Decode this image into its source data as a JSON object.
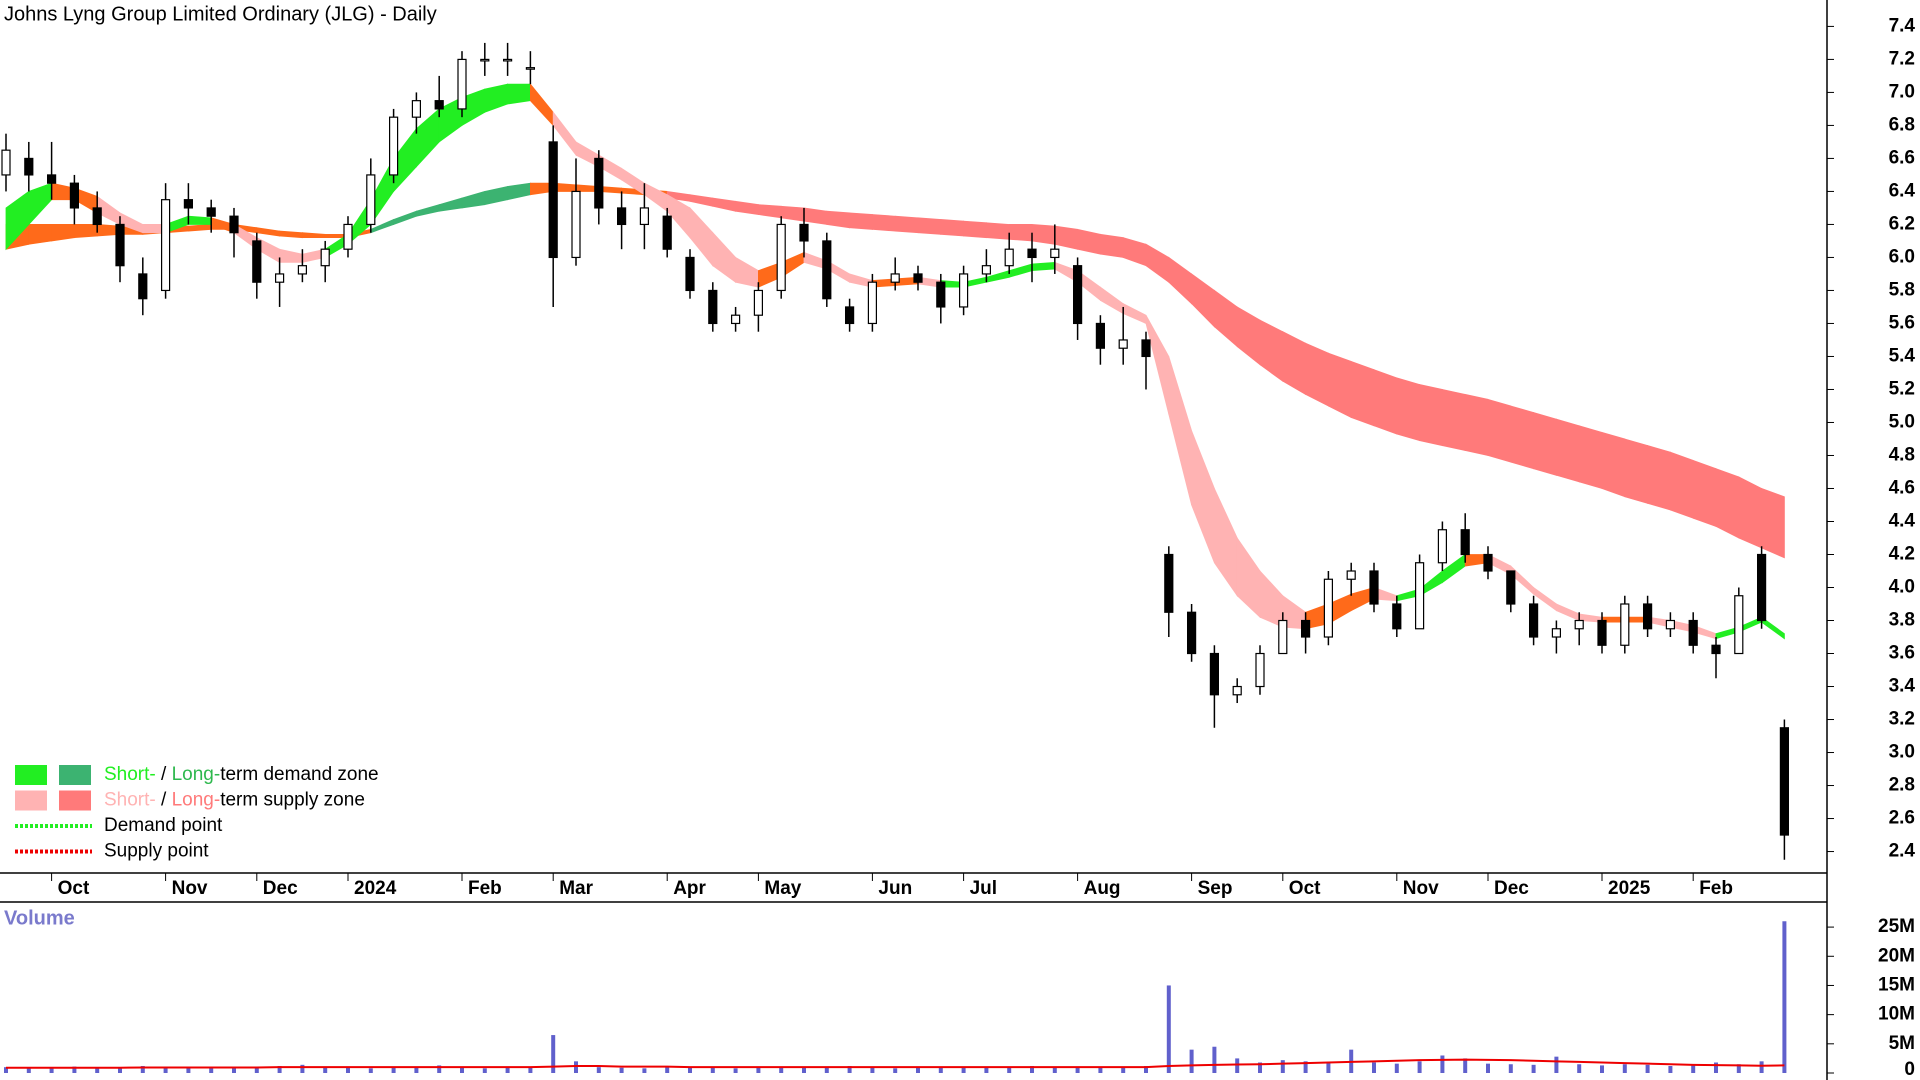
{
  "chart_data": {
    "type": "candlestick",
    "title": "Johns Lyng Group Limited Ordinary (JLG) - Daily",
    "categories": [
      null,
      null,
      "Oct",
      null,
      null,
      null,
      null,
      "Nov",
      null,
      null,
      null,
      "Dec",
      null,
      null,
      null,
      "2024",
      null,
      null,
      null,
      null,
      "Feb",
      null,
      null,
      null,
      "Mar",
      null,
      null,
      null,
      null,
      "Apr",
      null,
      null,
      null,
      "May",
      null,
      null,
      null,
      null,
      "Jun",
      null,
      null,
      null,
      "Jul",
      null,
      null,
      null,
      null,
      "Aug",
      null,
      null,
      null,
      null,
      "Sep",
      null,
      null,
      null,
      "Oct",
      null,
      null,
      null,
      null,
      "Nov",
      null,
      null,
      null,
      "Dec",
      null,
      null,
      null,
      null,
      "2025",
      null,
      null,
      null,
      "Feb",
      null,
      null,
      null,
      null
    ],
    "open": [
      6.5,
      6.6,
      6.5,
      6.45,
      6.3,
      6.2,
      5.9,
      5.8,
      6.35,
      6.3,
      6.25,
      6.1,
      5.85,
      5.9,
      5.95,
      6.05,
      6.2,
      6.5,
      6.85,
      6.95,
      6.9,
      7.2,
      7.2,
      7.15,
      6.7,
      6.0,
      6.6,
      6.3,
      6.2,
      6.25,
      6.0,
      5.8,
      5.6,
      5.65,
      5.8,
      6.2,
      6.1,
      5.7,
      5.6,
      5.85,
      5.9,
      5.85,
      5.7,
      5.9,
      5.95,
      6.05,
      6.0,
      5.95,
      5.6,
      5.45,
      5.5,
      4.2,
      3.85,
      3.6,
      3.35,
      3.4,
      3.6,
      3.8,
      3.7,
      4.05,
      4.1,
      3.9,
      3.75,
      4.15,
      4.35,
      4.2,
      4.1,
      3.9,
      3.7,
      3.75,
      3.8,
      3.65,
      3.9,
      3.75,
      3.8,
      3.65,
      3.6,
      4.2,
      3.15
    ],
    "high": [
      6.75,
      6.7,
      6.7,
      6.5,
      6.4,
      6.25,
      6.0,
      6.45,
      6.45,
      6.35,
      6.3,
      6.15,
      6.0,
      6.05,
      6.1,
      6.25,
      6.6,
      6.9,
      7.0,
      7.1,
      7.25,
      7.3,
      7.3,
      7.25,
      6.8,
      6.6,
      6.65,
      6.4,
      6.45,
      6.3,
      6.05,
      5.85,
      5.7,
      5.85,
      6.25,
      6.3,
      6.15,
      5.75,
      5.9,
      6.0,
      5.95,
      5.9,
      5.95,
      6.05,
      6.15,
      6.15,
      6.2,
      6.0,
      5.65,
      5.7,
      5.55,
      4.25,
      3.9,
      3.65,
      3.45,
      3.65,
      3.85,
      3.85,
      4.1,
      4.15,
      4.15,
      3.95,
      4.2,
      4.4,
      4.45,
      4.25,
      4.1,
      3.95,
      3.8,
      3.85,
      3.85,
      3.95,
      3.95,
      3.85,
      3.85,
      3.7,
      4.0,
      4.25,
      3.2
    ],
    "low": [
      6.4,
      6.4,
      6.35,
      6.2,
      6.15,
      5.85,
      5.65,
      5.75,
      6.2,
      6.15,
      6.0,
      5.75,
      5.7,
      5.85,
      5.85,
      6.0,
      6.15,
      6.45,
      6.75,
      6.85,
      6.85,
      7.1,
      7.1,
      7.05,
      5.7,
      5.95,
      6.2,
      6.05,
      6.05,
      6.0,
      5.75,
      5.55,
      5.55,
      5.55,
      5.75,
      6.0,
      5.7,
      5.55,
      5.55,
      5.8,
      5.8,
      5.6,
      5.65,
      5.85,
      5.9,
      5.85,
      5.9,
      5.5,
      5.35,
      5.35,
      5.2,
      3.7,
      3.55,
      3.15,
      3.3,
      3.35,
      3.6,
      3.6,
      3.65,
      3.95,
      3.85,
      3.7,
      3.75,
      4.1,
      4.15,
      4.05,
      3.85,
      3.65,
      3.6,
      3.65,
      3.6,
      3.6,
      3.7,
      3.7,
      3.6,
      3.45,
      3.6,
      3.75,
      2.35
    ],
    "close": [
      6.65,
      6.5,
      6.45,
      6.3,
      6.2,
      5.95,
      5.75,
      6.35,
      6.3,
      6.25,
      6.15,
      5.85,
      5.9,
      5.95,
      6.05,
      6.2,
      6.5,
      6.85,
      6.95,
      6.9,
      7.2,
      7.2,
      7.2,
      7.15,
      6.0,
      6.4,
      6.3,
      6.2,
      6.3,
      6.05,
      5.8,
      5.6,
      5.65,
      5.8,
      6.2,
      6.1,
      5.75,
      5.6,
      5.85,
      5.9,
      5.85,
      5.7,
      5.9,
      5.95,
      6.05,
      6.0,
      6.05,
      5.6,
      5.45,
      5.5,
      5.4,
      3.85,
      3.6,
      3.35,
      3.4,
      3.6,
      3.8,
      3.7,
      4.05,
      4.1,
      3.9,
      3.75,
      4.15,
      4.35,
      4.2,
      4.1,
      3.9,
      3.7,
      3.75,
      3.8,
      3.65,
      3.9,
      3.75,
      3.8,
      3.65,
      3.6,
      3.95,
      3.8,
      2.5
    ],
    "ylim": [
      2.27,
      7.56
    ],
    "yticks": [
      2.4,
      2.6,
      2.8,
      {
        "value": 3,
        "label": "3.0"
      },
      3.2,
      3.4,
      3.6,
      3.8,
      {
        "value": 4,
        "label": "4.0"
      },
      4.2,
      4.4,
      4.6,
      4.8,
      {
        "value": 5,
        "label": "5.0"
      },
      5.2,
      5.4,
      5.6,
      5.8,
      {
        "value": 6,
        "label": "6.0"
      },
      6.2,
      6.4,
      6.6,
      6.8,
      {
        "value": 7,
        "label": "7.0"
      },
      7.2,
      7.4
    ],
    "bands": [
      {
        "lower": [
          6.05,
          6.08,
          6.1,
          6.12,
          6.13,
          6.14,
          6.14,
          6.15,
          6.16,
          6.17,
          6.17,
          6.15,
          6.13,
          6.12,
          6.12,
          6.12,
          6.15,
          6.2,
          6.25,
          6.28,
          6.3,
          6.32,
          6.35,
          6.38,
          6.4,
          6.4,
          6.4,
          6.39,
          6.38,
          6.36,
          6.34,
          6.31,
          6.28,
          6.26,
          6.24,
          6.22,
          6.2,
          6.18,
          6.17,
          6.16,
          6.15,
          6.14,
          6.13,
          6.12,
          6.11,
          6.1,
          6.08,
          6.05,
          6.02,
          6.0,
          5.95,
          5.85,
          5.72,
          5.58,
          5.46,
          5.35,
          5.25,
          5.17,
          5.1,
          5.03,
          4.98,
          4.93,
          4.89,
          4.86,
          4.83,
          4.8,
          4.76,
          4.72,
          4.68,
          4.64,
          4.6,
          4.55,
          4.51,
          4.47,
          4.42,
          4.37,
          4.3,
          4.24,
          4.18
        ],
        "upper": [
          6.2,
          6.2,
          6.2,
          6.2,
          6.2,
          6.19,
          6.18,
          6.18,
          6.19,
          6.2,
          6.2,
          6.18,
          6.16,
          6.15,
          6.14,
          6.14,
          6.17,
          6.23,
          6.28,
          6.32,
          6.36,
          6.4,
          6.43,
          6.45,
          6.45,
          6.44,
          6.43,
          6.42,
          6.41,
          6.4,
          6.38,
          6.36,
          6.34,
          6.32,
          6.31,
          6.3,
          6.28,
          6.27,
          6.26,
          6.25,
          6.24,
          6.23,
          6.22,
          6.21,
          6.2,
          6.2,
          6.19,
          6.17,
          6.14,
          6.12,
          6.08,
          6.0,
          5.9,
          5.8,
          5.7,
          5.62,
          5.55,
          5.48,
          5.42,
          5.37,
          5.32,
          5.27,
          5.23,
          5.2,
          5.17,
          5.14,
          5.1,
          5.06,
          5.02,
          4.98,
          4.94,
          4.9,
          4.86,
          4.82,
          4.77,
          4.72,
          4.67,
          4.6,
          4.55
        ],
        "colors": [
          "#ff6a1a",
          "#ff6a1a",
          "#ff6a1a",
          "#ff6a1a",
          "#ff6a1a",
          "#ff6a1a",
          "#ff6a1a",
          "#ff6a1a",
          "#ff6a1a",
          "#ff6a1a",
          "#ff6a1a",
          "#ff6a1a",
          "#ff6a1a",
          "#ff6a1a",
          "#ff6a1a",
          "#ff6a1a",
          "#ff6a1a",
          "#3cb371",
          "#3cb371",
          "#3cb371",
          "#3cb371",
          "#3cb371",
          "#3cb371",
          "#3cb371",
          "#ff6a1a",
          "#ff6a1a",
          "#ff6a1a",
          "#ff6a1a",
          "#ff6a1a",
          "#ff6a1a",
          "#ff7a7a",
          "#ff7a7a",
          "#ff7a7a",
          "#ff7a7a",
          "#ff7a7a",
          "#ff7a7a",
          "#ff7a7a",
          "#ff7a7a",
          "#ff7a7a",
          "#ff7a7a",
          "#ff7a7a",
          "#ff7a7a",
          "#ff7a7a",
          "#ff7a7a",
          "#ff7a7a",
          "#ff7a7a",
          "#ff7a7a",
          "#ff7a7a",
          "#ff7a7a",
          "#ff7a7a",
          "#ff7a7a",
          "#ff7a7a",
          "#ff7a7a",
          "#ff7a7a",
          "#ff7a7a",
          "#ff7a7a",
          "#ff7a7a",
          "#ff7a7a",
          "#ff7a7a",
          "#ff7a7a",
          "#ff7a7a",
          "#ff7a7a",
          "#ff7a7a",
          "#ff7a7a",
          "#ff7a7a",
          "#ff7a7a",
          "#ff7a7a",
          "#ff7a7a",
          "#ff7a7a",
          "#ff7a7a",
          "#ff7a7a",
          "#ff7a7a",
          "#ff7a7a",
          "#ff7a7a",
          "#ff7a7a",
          "#ff7a7a",
          "#ff7a7a",
          "#ff7a7a",
          "#ff7a7a"
        ]
      },
      {
        "lower": [
          6.05,
          6.2,
          6.35,
          6.35,
          6.27,
          6.2,
          6.15,
          6.15,
          6.2,
          6.2,
          6.15,
          6.05,
          5.97,
          5.97,
          6.0,
          6.08,
          6.2,
          6.4,
          6.55,
          6.7,
          6.8,
          6.88,
          6.93,
          6.95,
          6.8,
          6.62,
          6.55,
          6.47,
          6.38,
          6.28,
          6.12,
          5.95,
          5.85,
          5.82,
          5.88,
          5.97,
          5.93,
          5.85,
          5.82,
          5.83,
          5.84,
          5.82,
          5.82,
          5.85,
          5.88,
          5.92,
          5.93,
          5.85,
          5.74,
          5.66,
          5.6,
          5.05,
          4.5,
          4.15,
          3.95,
          3.82,
          3.76,
          3.75,
          3.78,
          3.86,
          3.93,
          3.92,
          3.95,
          4.03,
          4.13,
          4.15,
          4.08,
          3.96,
          3.86,
          3.8,
          3.79,
          3.79,
          3.79,
          3.76,
          3.73,
          3.69,
          3.73,
          3.79,
          3.69
        ],
        "upper": [
          6.3,
          6.4,
          6.45,
          6.42,
          6.37,
          6.27,
          6.2,
          6.2,
          6.25,
          6.24,
          6.2,
          6.12,
          6.05,
          6.02,
          6.05,
          6.14,
          6.35,
          6.6,
          6.78,
          6.9,
          6.97,
          7.02,
          7.05,
          7.05,
          6.88,
          6.7,
          6.62,
          6.54,
          6.45,
          6.38,
          6.3,
          6.15,
          6.0,
          5.92,
          5.97,
          6.03,
          5.98,
          5.9,
          5.86,
          5.87,
          5.88,
          5.86,
          5.85,
          5.88,
          5.92,
          5.96,
          5.97,
          5.92,
          5.82,
          5.72,
          5.65,
          5.4,
          4.95,
          4.6,
          4.3,
          4.1,
          3.95,
          3.85,
          3.9,
          3.96,
          4.0,
          3.95,
          3.99,
          4.1,
          4.2,
          4.2,
          4.13,
          4.0,
          3.9,
          3.84,
          3.82,
          3.82,
          3.82,
          3.8,
          3.77,
          3.72,
          3.76,
          3.82,
          3.72
        ],
        "colors": [
          "#22ee22",
          "#22ee22",
          "#22ee22",
          "#ff6a1a",
          "#ff6a1a",
          "#ffb3b3",
          "#ffb3b3",
          "#ffb3b3",
          "#22ee22",
          "#22ee22",
          "#ff6a1a",
          "#ffb3b3",
          "#ffb3b3",
          "#ffb3b3",
          "#ffb3b3",
          "#22ee22",
          "#22ee22",
          "#22ee22",
          "#22ee22",
          "#22ee22",
          "#22ee22",
          "#22ee22",
          "#22ee22",
          "#22ee22",
          "#ff6a1a",
          "#ffb3b3",
          "#ffb3b3",
          "#ffb3b3",
          "#ffb3b3",
          "#ffb3b3",
          "#ffb3b3",
          "#ffb3b3",
          "#ffb3b3",
          "#ffb3b3",
          "#ff6a1a",
          "#ff6a1a",
          "#ffb3b3",
          "#ffb3b3",
          "#ffb3b3",
          "#ff6a1a",
          "#ff6a1a",
          "#ffb3b3",
          "#22ee22",
          "#22ee22",
          "#22ee22",
          "#22ee22",
          "#22ee22",
          "#ffb3b3",
          "#ffb3b3",
          "#ffb3b3",
          "#ffb3b3",
          "#ffb3b3",
          "#ffb3b3",
          "#ffb3b3",
          "#ffb3b3",
          "#ffb3b3",
          "#ffb3b3",
          "#ffb3b3",
          "#ff6a1a",
          "#ff6a1a",
          "#ff6a1a",
          "#ffb3b3",
          "#22ee22",
          "#22ee22",
          "#22ee22",
          "#ff6a1a",
          "#ffb3b3",
          "#ffb3b3",
          "#ffb3b3",
          "#ffb3b3",
          "#ffb3b3",
          "#ff6a1a",
          "#ff6a1a",
          "#ffb3b3",
          "#ffb3b3",
          "#ffb3b3",
          "#22ee22",
          "#22ee22",
          "#22ee22"
        ]
      }
    ],
    "legend": [
      {
        "swatches": [
          "#22ee22",
          "#3cb371"
        ],
        "parts": [
          {
            "text": "Short-",
            "color": "#22ee22"
          },
          {
            "text": " / ",
            "color": "#000000"
          },
          {
            "text": "Long-",
            "color": "#2db84d"
          },
          {
            "text": "term demand zone",
            "color": "#000000"
          }
        ]
      },
      {
        "swatches": [
          "#ffb3b3",
          "#ff7a7a"
        ],
        "parts": [
          {
            "text": "Short-",
            "color": "#ffb3b3"
          },
          {
            "text": " / ",
            "color": "#000000"
          },
          {
            "text": "Long-",
            "color": "#ff7a7a"
          },
          {
            "text": "term supply zone",
            "color": "#000000"
          }
        ]
      },
      {
        "line": "#22ee22",
        "parts": [
          {
            "text": "Demand point",
            "color": "#000000"
          }
        ]
      },
      {
        "line": "#ee0000",
        "parts": [
          {
            "text": "Supply point",
            "color": "#000000"
          }
        ]
      }
    ],
    "volume": {
      "label": "Volume",
      "color": "#6060cc",
      "average_color": "#ee0000",
      "values": [
        1000000,
        900000,
        800000,
        1100000,
        900000,
        1000000,
        1200000,
        900000,
        800000,
        1000000,
        900000,
        1100000,
        1200000,
        1400000,
        900000,
        1000000,
        800000,
        900000,
        1100000,
        1300000,
        900000,
        800000,
        1000000,
        900000,
        6500000,
        2000000,
        1000000,
        900000,
        800000,
        1000000,
        900000,
        1000000,
        800000,
        900000,
        1100000,
        900000,
        1000000,
        1200000,
        900000,
        800000,
        1000000,
        900000,
        1100000,
        1000000,
        900000,
        1200000,
        1000000,
        1100000,
        900000,
        1000000,
        1200000,
        15000000,
        4000000,
        4500000,
        2500000,
        1800000,
        2200000,
        2000000,
        1800000,
        4000000,
        1800000,
        1600000,
        2000000,
        3000000,
        2500000,
        1600000,
        1500000,
        1400000,
        2800000,
        1500000,
        1300000,
        1500000,
        1400000,
        1200000,
        1300000,
        1800000,
        1500000,
        2000000,
        26000000
      ],
      "average": [
        900000,
        900000,
        900000,
        900000,
        900000,
        900000,
        950000,
        950000,
        950000,
        950000,
        950000,
        950000,
        1000000,
        1000000,
        1000000,
        1000000,
        1000000,
        1000000,
        1000000,
        1000000,
        1000000,
        1000000,
        1000000,
        1000000,
        1100000,
        1200000,
        1200000,
        1100000,
        1100000,
        1100000,
        1000000,
        1000000,
        1000000,
        1000000,
        1000000,
        1000000,
        1000000,
        1000000,
        1000000,
        1000000,
        1000000,
        1000000,
        1000000,
        1000000,
        1000000,
        1000000,
        1000000,
        1000000,
        1000000,
        1000000,
        1000000,
        1200000,
        1300000,
        1400000,
        1450000,
        1500000,
        1600000,
        1700000,
        1800000,
        1900000,
        2000000,
        2100000,
        2200000,
        2250000,
        2300000,
        2250000,
        2200000,
        2100000,
        2000000,
        1900000,
        1800000,
        1700000,
        1600000,
        1500000,
        1400000,
        1350000,
        1300000,
        1250000,
        1300000
      ],
      "ylim": [
        -1200000,
        29300000
      ],
      "yticks": [
        0,
        {
          "value": 5000000,
          "label": "5M"
        },
        {
          "value": 10000000,
          "label": "10M"
        },
        {
          "value": 15000000,
          "label": "15M"
        },
        {
          "value": 20000000,
          "label": "20M"
        },
        {
          "value": 25000000,
          "label": "25M"
        }
      ]
    }
  }
}
